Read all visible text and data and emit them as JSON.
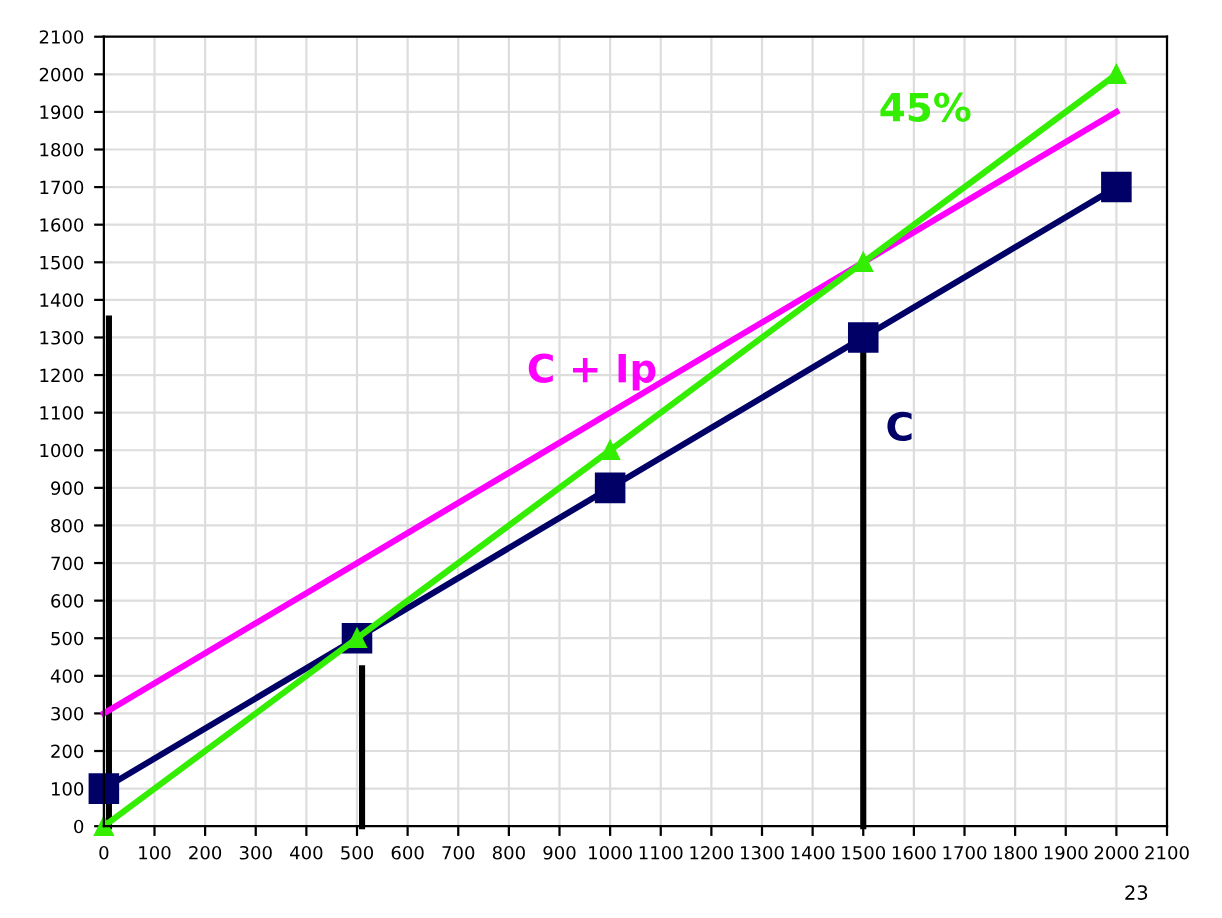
{
  "chart_data": {
    "type": "line",
    "xlim": [
      0,
      2100
    ],
    "ylim": [
      0,
      2100
    ],
    "xticks": [
      0,
      100,
      200,
      300,
      400,
      500,
      600,
      700,
      800,
      900,
      1000,
      1100,
      1200,
      1300,
      1400,
      1500,
      1600,
      1700,
      1800,
      1900,
      2000,
      2100
    ],
    "yticks": [
      0,
      100,
      200,
      300,
      400,
      500,
      600,
      700,
      800,
      900,
      1000,
      1100,
      1200,
      1300,
      1400,
      1500,
      1600,
      1700,
      1800,
      1900,
      2000,
      2100
    ],
    "grid": true,
    "series": [
      {
        "color": "#000000",
        "x": [
          10,
          10
        ],
        "values": [
          0,
          1350
        ],
        "marker": "none"
      },
      {
        "color": "#000000",
        "x": [
          510,
          510
        ],
        "values": [
          0,
          420
        ],
        "marker": "none"
      },
      {
        "color": "#000000",
        "x": [
          1500,
          1500
        ],
        "values": [
          0,
          1300
        ],
        "marker": "none"
      },
      {
        "name": "C + Ip",
        "color": "#ff00ff",
        "x": [
          0,
          500,
          1000,
          1500,
          2000
        ],
        "values": [
          300,
          700,
          1100,
          1500,
          1900
        ],
        "marker": "none"
      },
      {
        "name": "C",
        "color": "#000066",
        "x": [
          0,
          500,
          1000,
          1500,
          2000
        ],
        "values": [
          100,
          500,
          900,
          1300,
          1700
        ],
        "marker": "square"
      },
      {
        "name": "45%",
        "color": "#33ee00",
        "x": [
          0,
          500,
          1000,
          1500,
          2000
        ],
        "values": [
          0,
          500,
          1000,
          1500,
          2000
        ],
        "marker": "triangle"
      }
    ],
    "annotations": [
      "23"
    ]
  }
}
